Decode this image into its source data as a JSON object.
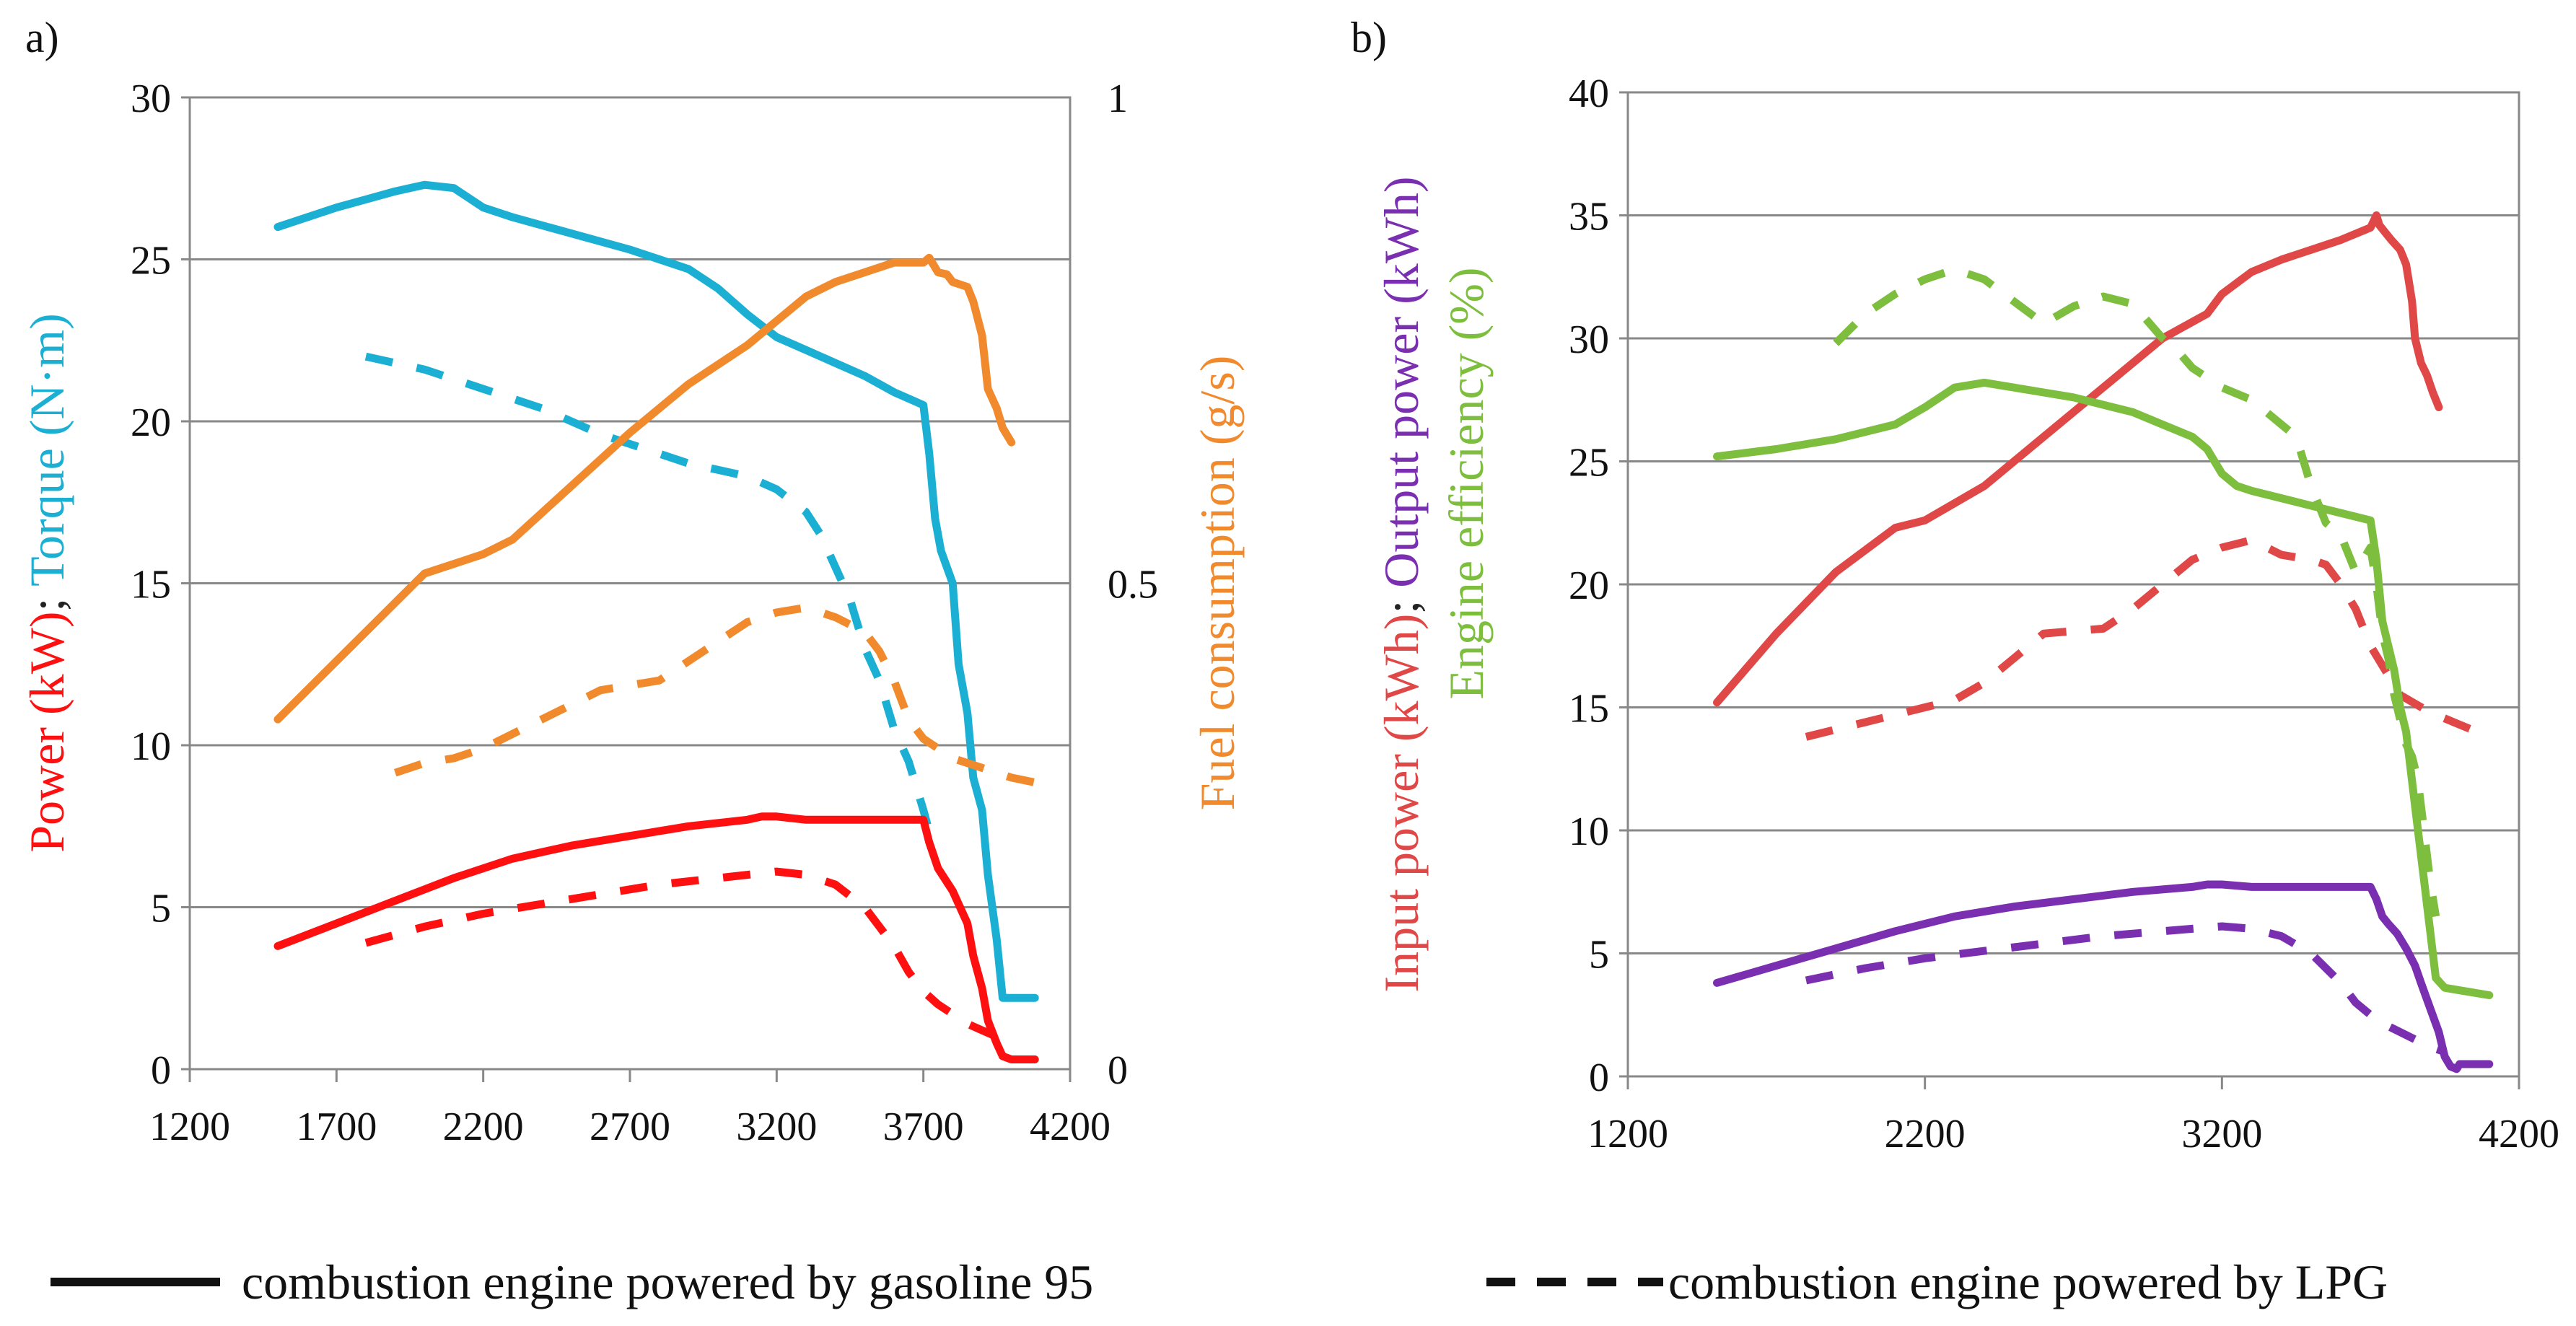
{
  "legend": {
    "solid_label": "combustion engine powered by gasoline 95",
    "dashed_label": "combustion engine powered by LPG"
  },
  "colors": {
    "power": "#FF1010",
    "torque": "#1BB0D3",
    "fuel": "#F08A2C",
    "input": "#E04848",
    "output": "#7A2FB0",
    "efficiency": "#7DBE3E"
  },
  "chart_data": [
    {
      "type": "line",
      "panel": "a)",
      "xlabel": "",
      "x_ticks": [
        "1200",
        "1700",
        "2200",
        "2700",
        "3200",
        "3700",
        "4200"
      ],
      "xlim": [
        1200,
        4200
      ],
      "ylim": [
        0,
        30
      ],
      "y_ticks": [
        "0",
        "5",
        "10",
        "15",
        "20",
        "25",
        "30"
      ],
      "y2lim": [
        0,
        1
      ],
      "y2_ticks": [
        "0",
        "0.5",
        "1"
      ],
      "ylabel_parts": [
        {
          "text": "Power (kW)",
          "color": "#FF1010"
        },
        {
          "text": "; ",
          "color": "#222222"
        },
        {
          "text": "Torque (N·m)",
          "color": "#1BB0D3"
        }
      ],
      "y2label": "Fuel consumption (g/s)",
      "series": [
        {
          "name": "Torque (N·m) – gasoline 95",
          "axis": "y",
          "style": "solid",
          "color": "#1BB0D3",
          "x": [
            1500,
            1700,
            1900,
            2000,
            2100,
            2200,
            2300,
            2500,
            2700,
            2900,
            3000,
            3100,
            3200,
            3300,
            3400,
            3500,
            3600,
            3700,
            3720,
            3740,
            3760,
            3800,
            3820,
            3850,
            3870,
            3900,
            3920,
            3950,
            3970,
            4000,
            4020,
            4050,
            4080
          ],
          "values": [
            26.0,
            26.6,
            27.1,
            27.3,
            27.2,
            26.6,
            26.3,
            25.8,
            25.3,
            24.7,
            24.1,
            23.3,
            22.6,
            22.2,
            21.8,
            21.4,
            20.9,
            20.5,
            19.0,
            17.0,
            16.0,
            15.0,
            12.5,
            11.0,
            9.0,
            8.0,
            6.0,
            4.0,
            2.2,
            2.2,
            2.2,
            2.2,
            2.2
          ]
        },
        {
          "name": "Torque (N·m) – LPG",
          "axis": "y",
          "style": "dashed",
          "color": "#1BB0D3",
          "x": [
            1800,
            2000,
            2200,
            2400,
            2600,
            2800,
            2900,
            3000,
            3100,
            3200,
            3300,
            3350,
            3400,
            3450,
            3500,
            3550,
            3600,
            3650,
            3700,
            3730
          ],
          "values": [
            22.0,
            21.6,
            21.0,
            20.4,
            19.6,
            19.0,
            18.7,
            18.5,
            18.3,
            17.9,
            17.2,
            16.5,
            15.5,
            14.5,
            13.0,
            12.0,
            10.5,
            9.5,
            8.0,
            7.0
          ]
        },
        {
          "name": "Power (kW) – gasoline 95",
          "axis": "y",
          "style": "solid",
          "color": "#FF1010",
          "x": [
            1500,
            1700,
            1900,
            2100,
            2300,
            2500,
            2700,
            2900,
            3100,
            3150,
            3200,
            3300,
            3400,
            3500,
            3600,
            3700,
            3720,
            3750,
            3800,
            3850,
            3870,
            3900,
            3920,
            3950,
            3970,
            4000,
            4050,
            4080
          ],
          "values": [
            3.8,
            4.5,
            5.2,
            5.9,
            6.5,
            6.9,
            7.2,
            7.5,
            7.7,
            7.8,
            7.8,
            7.7,
            7.7,
            7.7,
            7.7,
            7.7,
            7.0,
            6.2,
            5.5,
            4.5,
            3.5,
            2.5,
            1.5,
            0.8,
            0.4,
            0.3,
            0.3,
            0.3
          ]
        },
        {
          "name": "Power (kW) – LPG",
          "axis": "y",
          "style": "dashed",
          "color": "#FF1010",
          "x": [
            1800,
            2000,
            2200,
            2400,
            2600,
            2800,
            3000,
            3100,
            3200,
            3300,
            3400,
            3500,
            3550,
            3600,
            3650,
            3700,
            3750,
            3800,
            3850,
            3900,
            3950
          ],
          "values": [
            3.9,
            4.4,
            4.8,
            5.1,
            5.4,
            5.7,
            5.9,
            6.0,
            6.1,
            6.0,
            5.7,
            5.0,
            4.4,
            3.8,
            3.0,
            2.4,
            2.0,
            1.7,
            1.4,
            1.2,
            1.0
          ]
        },
        {
          "name": "Fuel consumption (g/s) – gasoline 95",
          "axis": "y2",
          "style": "solid",
          "color": "#F08A2C",
          "x": [
            1500,
            1700,
            1900,
            2000,
            2100,
            2200,
            2300,
            2500,
            2700,
            2900,
            3100,
            3200,
            3300,
            3400,
            3500,
            3600,
            3700,
            3720,
            3750,
            3780,
            3800,
            3850,
            3870,
            3900,
            3920,
            3950,
            3970,
            4000
          ],
          "values": [
            0.36,
            0.42,
            0.48,
            0.51,
            0.52,
            0.53,
            0.545,
            0.6,
            0.655,
            0.705,
            0.745,
            0.77,
            0.795,
            0.81,
            0.82,
            0.83,
            0.83,
            0.835,
            0.82,
            0.818,
            0.81,
            0.805,
            0.79,
            0.755,
            0.7,
            0.68,
            0.66,
            0.645
          ]
        },
        {
          "name": "Fuel consumption (g/s) – LPG",
          "axis": "y2",
          "style": "dashed",
          "color": "#F08A2C",
          "x": [
            1900,
            2000,
            2100,
            2200,
            2300,
            2400,
            2500,
            2600,
            2700,
            2800,
            2900,
            3000,
            3100,
            3200,
            3300,
            3400,
            3500,
            3550,
            3600,
            3650,
            3700,
            3800,
            3900,
            4000,
            4080
          ],
          "values": [
            0.305,
            0.315,
            0.32,
            0.33,
            0.345,
            0.36,
            0.375,
            0.39,
            0.395,
            0.4,
            0.42,
            0.44,
            0.46,
            0.47,
            0.475,
            0.465,
            0.45,
            0.43,
            0.4,
            0.36,
            0.34,
            0.32,
            0.31,
            0.3,
            0.295
          ]
        }
      ]
    },
    {
      "type": "line",
      "panel": "b)",
      "xlabel": "",
      "x_ticks": [
        "1200",
        "2200",
        "3200",
        "4200"
      ],
      "xlim": [
        1200,
        4200
      ],
      "ylim": [
        0,
        40
      ],
      "y_ticks": [
        "0",
        "5",
        "10",
        "15",
        "20",
        "25",
        "30",
        "35",
        "40"
      ],
      "ylabel_parts": [
        {
          "text": "Input power (kWh)",
          "color": "#E04848"
        },
        {
          "text": "; ",
          "color": "#222222"
        },
        {
          "text": "Output power (kWh)",
          "color": "#7A2FB0"
        }
      ],
      "ylabel2_parts": [
        {
          "text": "Engine efficiency (%)",
          "color": "#7DBE3E"
        }
      ],
      "series": [
        {
          "name": "Input power (kWh) – gasoline 95",
          "axis": "y",
          "style": "solid",
          "color": "#E04848",
          "x": [
            1500,
            1700,
            1900,
            2100,
            2200,
            2300,
            2400,
            2600,
            2800,
            3000,
            3150,
            3200,
            3300,
            3400,
            3600,
            3700,
            3720,
            3730,
            3750,
            3770,
            3800,
            3820,
            3840,
            3850,
            3870,
            3890,
            3910,
            3930
          ],
          "values": [
            15.2,
            18.0,
            20.5,
            22.3,
            22.6,
            23.3,
            24.0,
            26.0,
            28.0,
            30.0,
            31.0,
            31.8,
            32.7,
            33.2,
            34.0,
            34.5,
            35.0,
            34.6,
            34.3,
            34.0,
            33.6,
            33.0,
            31.5,
            30.0,
            29.0,
            28.5,
            27.8,
            27.2
          ]
        },
        {
          "name": "Input power (kWh) – LPG",
          "axis": "y",
          "style": "dashed",
          "color": "#E04848",
          "x": [
            1800,
            2000,
            2200,
            2300,
            2400,
            2500,
            2600,
            2800,
            2900,
            3000,
            3100,
            3200,
            3300,
            3400,
            3500,
            3550,
            3600,
            3650,
            3700,
            3750,
            3800,
            3900,
            4000,
            4100
          ],
          "values": [
            13.8,
            14.4,
            15.0,
            15.3,
            16.0,
            17.0,
            18.0,
            18.2,
            19.0,
            20.0,
            21.0,
            21.5,
            21.8,
            21.2,
            21.0,
            20.8,
            20.0,
            19.0,
            17.5,
            16.5,
            15.5,
            14.8,
            14.3,
            13.8
          ]
        },
        {
          "name": "Engine efficiency (%) – gasoline 95",
          "axis": "y",
          "style": "solid",
          "color": "#7DBE3E",
          "x": [
            1500,
            1700,
            1900,
            2100,
            2200,
            2300,
            2400,
            2500,
            2600,
            2700,
            2800,
            2900,
            3000,
            3100,
            3150,
            3200,
            3250,
            3300,
            3400,
            3500,
            3600,
            3700,
            3720,
            3740,
            3760,
            3780,
            3800,
            3820,
            3840,
            3860,
            3880,
            3900,
            3920,
            3950,
            4000,
            4100
          ],
          "values": [
            25.2,
            25.5,
            25.9,
            26.5,
            27.2,
            28.0,
            28.2,
            28.0,
            27.8,
            27.6,
            27.3,
            27.0,
            26.5,
            26.0,
            25.5,
            24.5,
            24.0,
            23.8,
            23.5,
            23.2,
            22.9,
            22.6,
            21.0,
            18.5,
            17.5,
            16.5,
            15.0,
            14.0,
            12.0,
            10.0,
            8.0,
            6.0,
            4.0,
            3.6,
            3.5,
            3.3
          ]
        },
        {
          "name": "Engine efficiency (%) – LPG",
          "axis": "y",
          "style": "dashed",
          "color": "#7DBE3E",
          "x": [
            1900,
            2000,
            2100,
            2200,
            2300,
            2400,
            2500,
            2600,
            2700,
            2800,
            2900,
            3000,
            3050,
            3100,
            3200,
            3300,
            3400,
            3450,
            3500,
            3550,
            3600,
            3650,
            3700,
            3720,
            3740,
            3760,
            3780,
            3800,
            3820,
            3840,
            3860,
            3880,
            3900,
            3920
          ],
          "values": [
            29.8,
            31.0,
            31.8,
            32.4,
            32.8,
            32.4,
            31.5,
            30.6,
            31.3,
            31.7,
            31.4,
            30.0,
            29.5,
            28.8,
            28.0,
            27.5,
            26.5,
            26.0,
            24.0,
            22.5,
            22.0,
            20.5,
            21.5,
            20.0,
            18.0,
            17.0,
            15.5,
            14.5,
            13.5,
            13.0,
            12.0,
            10.0,
            8.0,
            6.5
          ]
        },
        {
          "name": "Output power (kWh) – gasoline 95",
          "axis": "y",
          "style": "solid",
          "color": "#7A2FB0",
          "x": [
            1500,
            1700,
            1900,
            2100,
            2300,
            2500,
            2700,
            2900,
            3100,
            3150,
            3200,
            3300,
            3400,
            3500,
            3600,
            3700,
            3720,
            3740,
            3760,
            3790,
            3820,
            3850,
            3870,
            3900,
            3930,
            3950,
            3970,
            3990,
            4000,
            4050,
            4100
          ],
          "values": [
            3.8,
            4.5,
            5.2,
            5.9,
            6.5,
            6.9,
            7.2,
            7.5,
            7.7,
            7.8,
            7.8,
            7.7,
            7.7,
            7.7,
            7.7,
            7.7,
            7.2,
            6.5,
            6.2,
            5.8,
            5.2,
            4.5,
            3.8,
            2.8,
            1.8,
            0.8,
            0.4,
            0.3,
            0.5,
            0.5,
            0.5
          ]
        },
        {
          "name": "Output power (kWh) – LPG",
          "axis": "y",
          "style": "dashed",
          "color": "#7A2FB0",
          "x": [
            1800,
            2000,
            2200,
            2400,
            2600,
            2800,
            3000,
            3100,
            3200,
            3300,
            3400,
            3500,
            3550,
            3600,
            3650,
            3700,
            3750,
            3800,
            3850,
            3900,
            3950
          ],
          "values": [
            3.9,
            4.4,
            4.8,
            5.1,
            5.4,
            5.7,
            5.9,
            6.0,
            6.1,
            6.0,
            5.7,
            5.0,
            4.4,
            3.8,
            3.0,
            2.5,
            2.1,
            1.8,
            1.5,
            1.2,
            1.0
          ]
        }
      ]
    }
  ]
}
